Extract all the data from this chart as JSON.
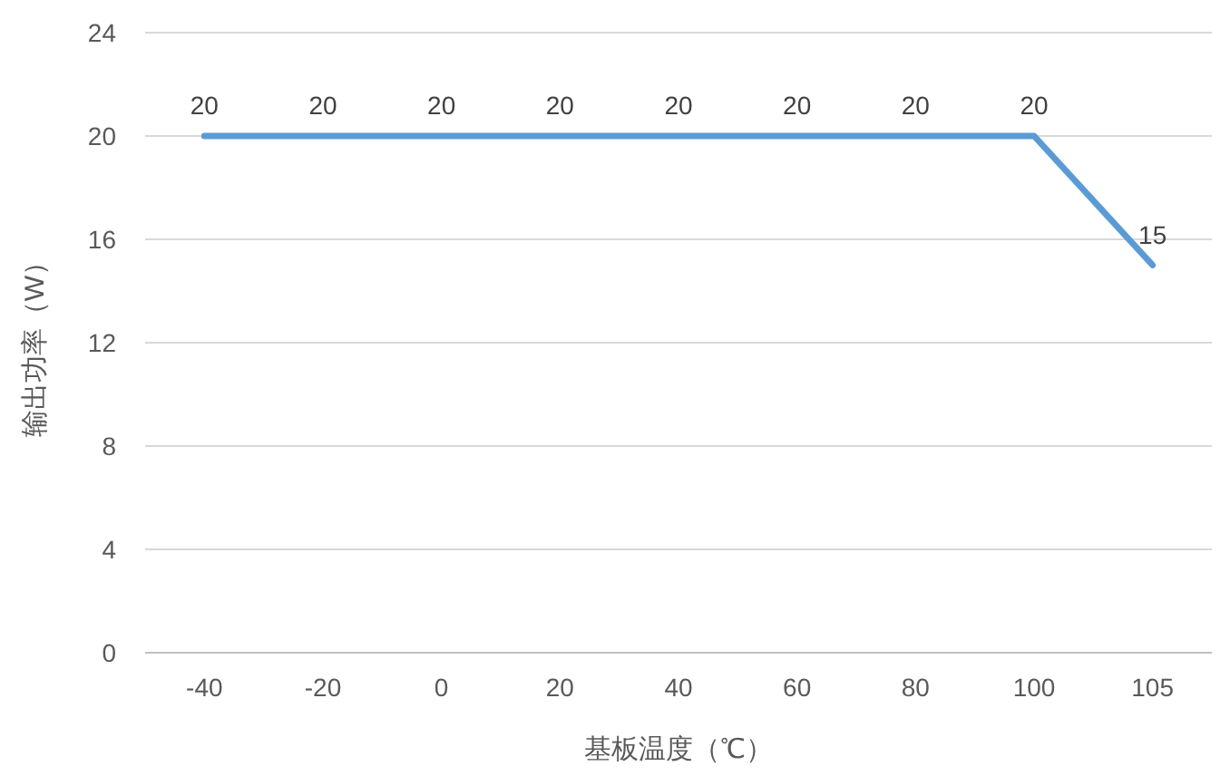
{
  "chart_data": {
    "type": "line",
    "categories": [
      "-40",
      "-20",
      "0",
      "20",
      "40",
      "60",
      "80",
      "100",
      "105"
    ],
    "values": [
      20,
      20,
      20,
      20,
      20,
      20,
      20,
      20,
      15
    ],
    "color": "#5b9bd5",
    "ylim": [
      0,
      24
    ],
    "yticks": [
      0,
      4,
      8,
      12,
      16,
      20,
      24
    ],
    "xlabel": "基板温度（℃）",
    "ylabel": "输出功率（W）",
    "data_labels": true,
    "grid": "y"
  }
}
